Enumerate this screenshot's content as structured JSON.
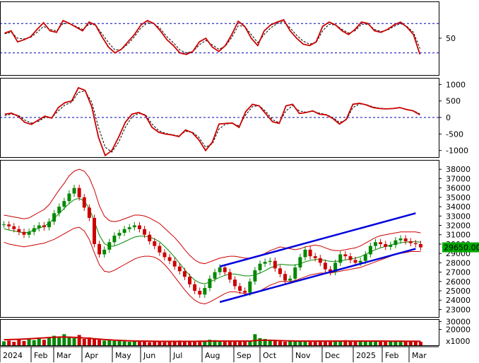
{
  "chart_data": [
    {
      "panel": "rsi",
      "type": "line",
      "ylim": [
        0,
        100
      ],
      "y_ticks": [
        "50"
      ],
      "reference_levels": [
        30,
        70
      ],
      "grid": false,
      "series": [
        {
          "color": "#cc0000",
          "style": "solid",
          "values": [
            57,
            60,
            45,
            48,
            52,
            62,
            71,
            60,
            58,
            74,
            70,
            65,
            60,
            72,
            68,
            52,
            38,
            30,
            35,
            45,
            55,
            68,
            74,
            70,
            60,
            48,
            40,
            30,
            28,
            32,
            45,
            50,
            38,
            32,
            40,
            55,
            73,
            66,
            50,
            40,
            60,
            68,
            72,
            75,
            60,
            50,
            42,
            40,
            45,
            66,
            72,
            68,
            60,
            55,
            62,
            72,
            70,
            60,
            58,
            62,
            68,
            72,
            65,
            55,
            28
          ]
        },
        {
          "color": "#000000",
          "style": "dashed",
          "values": [
            56,
            58,
            50,
            49,
            51,
            58,
            66,
            62,
            60,
            70,
            70,
            66,
            62,
            69,
            68,
            56,
            44,
            34,
            35,
            42,
            52,
            64,
            71,
            70,
            63,
            52,
            44,
            34,
            30,
            32,
            41,
            47,
            41,
            35,
            39,
            51,
            67,
            66,
            55,
            44,
            55,
            64,
            70,
            73,
            64,
            54,
            46,
            42,
            44,
            60,
            69,
            68,
            62,
            57,
            60,
            69,
            69,
            62,
            59,
            61,
            66,
            70,
            66,
            58,
            36
          ]
        }
      ],
      "colors": {
        "level_lines": "#0000aa"
      }
    },
    {
      "panel": "macd",
      "type": "line",
      "ylim": [
        -1200,
        1200
      ],
      "y_ticks": [
        "1000",
        "500",
        "0",
        "-500",
        "-1000"
      ],
      "reference_levels": [
        0
      ],
      "series": [
        {
          "color": "#cc0000",
          "style": "solid",
          "values": [
            100,
            130,
            40,
            -150,
            -210,
            -80,
            40,
            -20,
            300,
            450,
            500,
            900,
            820,
            320,
            -600,
            -1150,
            -1000,
            -600,
            -150,
            100,
            150,
            60,
            -300,
            -450,
            -500,
            -530,
            -580,
            -380,
            -460,
            -680,
            -1000,
            -750,
            -200,
            -180,
            -170,
            -300,
            180,
            400,
            350,
            110,
            -130,
            -180,
            350,
            400,
            120,
            150,
            200,
            100,
            80,
            -30,
            -200,
            -60,
            400,
            430,
            380,
            300,
            270,
            260,
            270,
            300,
            240,
            200,
            80
          ]
        },
        {
          "color": "#000000",
          "style": "dashed",
          "values": [
            60,
            100,
            70,
            -80,
            -170,
            -120,
            0,
            -10,
            200,
            380,
            460,
            760,
            800,
            460,
            -300,
            -900,
            -1050,
            -750,
            -300,
            20,
            120,
            90,
            -200,
            -400,
            -480,
            -520,
            -560,
            -420,
            -440,
            -600,
            -900,
            -800,
            -350,
            -200,
            -180,
            -260,
            80,
            330,
            360,
            180,
            -70,
            -160,
            200,
            360,
            200,
            160,
            190,
            130,
            90,
            0,
            -150,
            -80,
            300,
            410,
            390,
            320,
            280,
            265,
            268,
            290,
            250,
            210,
            110
          ]
        }
      ],
      "colors": {
        "level_lines": "#0000aa"
      }
    },
    {
      "panel": "price",
      "type": "candlestick",
      "ylim": [
        22200,
        39000
      ],
      "y_ticks": [
        "38000",
        "37000",
        "36000",
        "35000",
        "34000",
        "33000",
        "32000",
        "31000",
        "30000",
        "29000",
        "28000",
        "27000",
        "26000",
        "25000",
        "24000",
        "23000"
      ],
      "last_price": "29650.00",
      "x_ticks": [
        "2024",
        "Feb",
        "Mar",
        "Apr",
        "May",
        "Jun",
        "Jul",
        "Aug",
        "Sep",
        "Oct",
        "Nov",
        "Dec",
        "2025",
        "Feb",
        "Mar"
      ],
      "close": [
        32100,
        31900,
        31600,
        31300,
        31000,
        31300,
        31700,
        32000,
        31800,
        32400,
        33300,
        34000,
        34600,
        35400,
        36000,
        35000,
        33900,
        32800,
        30000,
        28900,
        29400,
        30200,
        30900,
        31200,
        31600,
        31800,
        32000,
        31600,
        31000,
        30300,
        29800,
        29100,
        28600,
        28200,
        27600,
        27100,
        26500,
        25700,
        25000,
        24600,
        25300,
        26300,
        27000,
        27500,
        27000,
        26200,
        25500,
        25000,
        24800,
        26000,
        27200,
        27900,
        28100,
        28200,
        27400,
        26800,
        26100,
        26300,
        27500,
        28600,
        29400,
        28700,
        28500,
        28000,
        27300,
        27000,
        28000,
        28900,
        28700,
        28300,
        28000,
        28200,
        28900,
        29800,
        30200,
        30000,
        29700,
        29900,
        30400,
        30600,
        30300,
        30100,
        30000,
        29650
      ],
      "bollinger": {
        "upper": [
          33100,
          33000,
          32900,
          32800,
          32700,
          32800,
          33100,
          33400,
          33700,
          34200,
          35000,
          35800,
          36500,
          37300,
          37800,
          38000,
          37800,
          37100,
          35800,
          34100,
          33000,
          32500,
          32400,
          32500,
          32700,
          32900,
          33100,
          33100,
          33000,
          32800,
          32500,
          32200,
          31700,
          31200,
          30700,
          30100,
          29400,
          28800,
          28300,
          28000,
          27900,
          28100,
          28300,
          28500,
          28600,
          28700,
          28700,
          28600,
          28500,
          28500,
          28600,
          28800,
          29000,
          29300,
          29500,
          29700,
          29600,
          29500,
          29400,
          29500,
          29700,
          29800,
          29900,
          29800,
          29600,
          29400,
          29300,
          29300,
          29400,
          29500,
          29600,
          29800,
          30100,
          30400,
          30700,
          30900,
          31000,
          31100,
          31200,
          31300,
          31300,
          31300,
          31300,
          31200
        ],
        "lower": [
          30200,
          30000,
          29900,
          29800,
          29700,
          29800,
          29900,
          30000,
          30100,
          30300,
          30500,
          30800,
          31100,
          31400,
          31700,
          31800,
          31400,
          30500,
          29100,
          27800,
          27100,
          27000,
          27200,
          27500,
          27800,
          28100,
          28400,
          28600,
          28700,
          28700,
          28600,
          28300,
          27800,
          27200,
          26500,
          25800,
          25100,
          24500,
          24000,
          23700,
          23600,
          23800,
          24100,
          24400,
          24700,
          24900,
          24900,
          24800,
          24700,
          24700,
          24800,
          25000,
          25300,
          25600,
          25800,
          26000,
          26000,
          26000,
          26100,
          26300,
          26500,
          26700,
          26800,
          26900,
          26900,
          26900,
          27000,
          27100,
          27200,
          27300,
          27400,
          27500,
          27700,
          27900,
          28100,
          28300,
          28500,
          28700,
          28900,
          29000,
          29100,
          29200,
          29200,
          29200
        ],
        "middle": [
          31650,
          31500,
          31400,
          31300,
          31200,
          31300,
          31500,
          31700,
          31900,
          32250,
          32750,
          33300,
          33800,
          34350,
          34750,
          34900,
          34600,
          33800,
          32450,
          30950,
          30050,
          29750,
          29800,
          30000,
          30250,
          30500,
          30750,
          30850,
          30850,
          30750,
          30550,
          30250,
          29750,
          29200,
          28600,
          27950,
          27250,
          26650,
          26150,
          25850,
          25750,
          25950,
          26200,
          26450,
          26650,
          26800,
          26800,
          26700,
          26600,
          26600,
          26700,
          26900,
          27150,
          27450,
          27650,
          27850,
          27800,
          27750,
          27750,
          27900,
          28100,
          28250,
          28350,
          28350,
          28250,
          28150,
          28150,
          28200,
          28300,
          28400,
          28500,
          28650,
          28900,
          29150,
          29400,
          29600,
          29750,
          29900,
          30050,
          30150,
          30200,
          30250,
          30250,
          30200
        ]
      },
      "trend_channel": {
        "upper": {
          "from": {
            "date": "Aug",
            "price": 27600
          },
          "to": {
            "date": "Mar",
            "price": 33300
          }
        },
        "lower": {
          "from": {
            "date": "Aug",
            "price": 23800
          },
          "to": {
            "date": "Mar",
            "price": 29500
          }
        }
      },
      "colors": {
        "up": "#008800",
        "down": "#cc0000",
        "bollinger": "#cc0000",
        "middle": "#008800",
        "channel": "#0000dd",
        "last_price_label": "#00aa00"
      }
    },
    {
      "panel": "volume",
      "type": "bar",
      "ylim": [
        0,
        33000
      ],
      "y_ticks": [
        "30000",
        "20000"
      ],
      "unit_label": "x1000",
      "volume_ma_color": "#cc0000",
      "values": [
        5000,
        6000,
        4500,
        7000,
        5500,
        8000,
        6500,
        9000,
        7000,
        10000,
        12000,
        9500,
        14000,
        11000,
        9000,
        13000,
        8000,
        10000,
        9000,
        7000,
        6000,
        7000,
        5500,
        6000,
        5000,
        4500,
        6000,
        5000,
        4500,
        4000,
        5000,
        4500,
        4000,
        5000,
        4500,
        6000,
        5500,
        5000,
        4500,
        6000,
        5000,
        7000,
        6500,
        5000,
        4500,
        5500,
        5000,
        6000,
        5500,
        5000,
        14000,
        9000,
        8000,
        6000,
        5500,
        5000,
        4500,
        5000,
        6000,
        5500,
        5000,
        4500,
        5000,
        6000,
        5500,
        5000,
        4500,
        5000,
        6500,
        6000,
        5500,
        5000,
        4500,
        5500,
        6000,
        5500,
        5000,
        4800,
        5200,
        5000,
        4600,
        4800,
        5000,
        4500
      ],
      "volume_ma": [
        7000,
        7200,
        7400,
        7600,
        7900,
        8200,
        8600,
        9000,
        9400,
        9800,
        10200,
        10400,
        10500,
        10300,
        10000,
        9600,
        9200,
        8800,
        8300,
        7800,
        7300,
        6900,
        6500,
        6200,
        5900,
        5700,
        5500,
        5400,
        5300,
        5200,
        5100,
        5000,
        5000,
        5000,
        5000,
        5000,
        5000,
        5000,
        5000,
        5100,
        5200,
        5300,
        5300,
        5300,
        5300,
        5300,
        5300,
        5300,
        5300,
        5400,
        6000,
        6300,
        6400,
        6300,
        6100,
        5900,
        5700,
        5600,
        5500,
        5400,
        5400,
        5300,
        5300,
        5300,
        5300,
        5300,
        5300,
        5300,
        5300,
        5300,
        5300,
        5300,
        5300,
        5300,
        5300,
        5300,
        5300,
        5200,
        5200,
        5200,
        5100,
        5100,
        5100,
        5000
      ]
    }
  ]
}
